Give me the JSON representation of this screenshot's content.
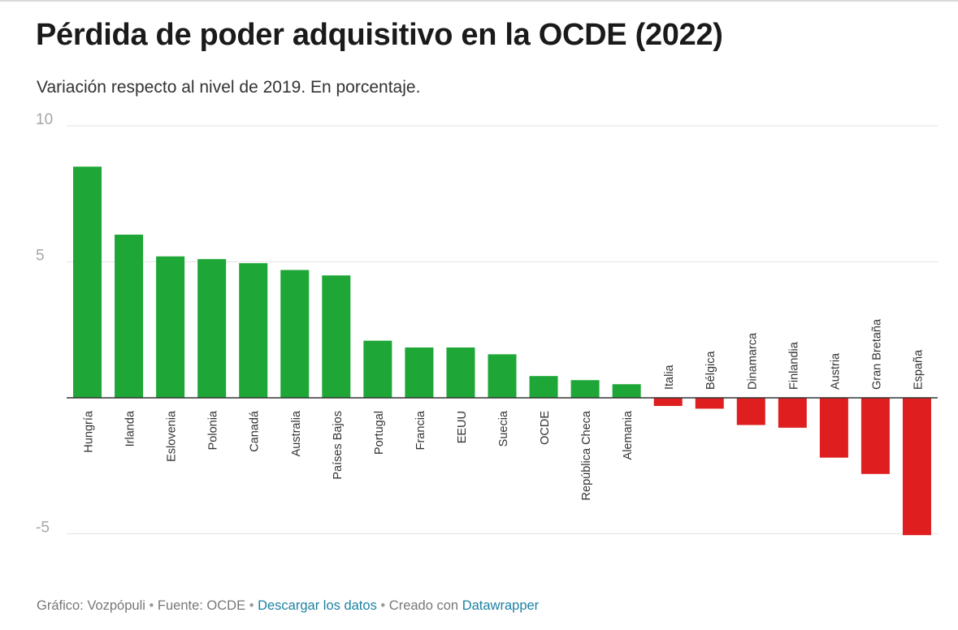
{
  "title": "Pérdida de poder adquisitivo en la OCDE (2022)",
  "subtitle": "Variación respecto al nivel de 2019. En porcentaje.",
  "footer": {
    "credit": "Gráfico: Vozpópuli",
    "source": "Fuente: OCDE",
    "download": "Descargar los datos",
    "created_with": "Creado con",
    "tool": "Datawrapper",
    "separator": "•"
  },
  "colors": {
    "positive": "#1ea637",
    "negative": "#df1f1f",
    "grid": "#e3e3e3",
    "axis": "#333333",
    "tick": "#a6a6a6"
  },
  "chart_data": {
    "type": "bar",
    "title": "Pérdida de poder adquisitivo en la OCDE (2022)",
    "subtitle": "Variación respecto al nivel de 2019. En porcentaje.",
    "categories": [
      "Hungría",
      "Irlanda",
      "Eslovenia",
      "Polonia",
      "Canadá",
      "Australia",
      "Países Bajos",
      "Portugal",
      "Francia",
      "EEUU",
      "Suecia",
      "OCDE",
      "República Checa",
      "Alemania",
      "Italia",
      "Bélgica",
      "Dinamarca",
      "Finlandia",
      "Austria",
      "Gran Bretaña",
      "España"
    ],
    "values": [
      8.5,
      6.0,
      5.2,
      5.1,
      4.95,
      4.7,
      4.5,
      2.1,
      1.85,
      1.85,
      1.6,
      0.8,
      0.65,
      0.5,
      -0.3,
      -0.4,
      -1.0,
      -1.1,
      -2.2,
      -2.8,
      -5.05
    ],
    "ylim": [
      -5,
      10
    ],
    "yticks": [
      10,
      5,
      -5
    ],
    "grid": true,
    "xlabel": "",
    "ylabel": ""
  }
}
